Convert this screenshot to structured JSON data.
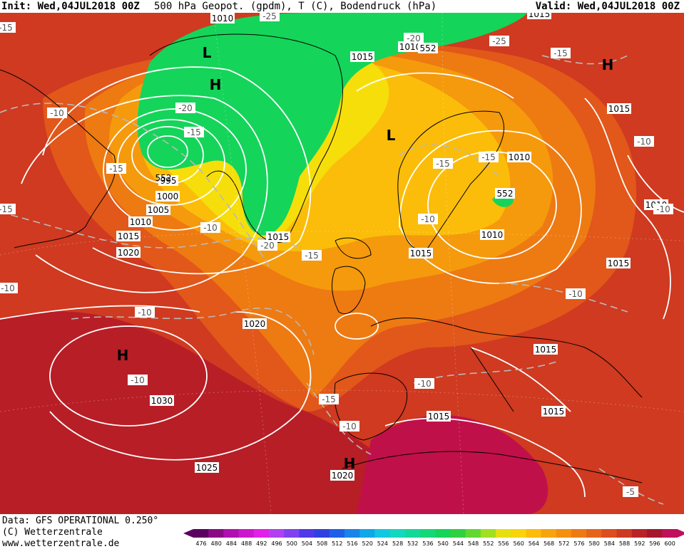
{
  "header": {
    "init": "Init: Wed,04JUL2018 00Z",
    "title": "500 hPa Geopot. (gpdm), T (C), Bodendruck (hPa)",
    "valid": "Valid: Wed,04JUL2018 00Z"
  },
  "footer": {
    "data_source": "Data: GFS OPERATIONAL 0.250°",
    "copyright": "(C) Wetterzentrale",
    "url": "www.wetterzentrale.de"
  },
  "colors": {
    "deep_red": "#b81e26",
    "red": "#cf3a20",
    "orange_red": "#e2571a",
    "orange": "#ee7a12",
    "orange_light": "#f59a0c",
    "yellow_orange": "#fbbd0a",
    "yellow": "#f6de0b",
    "green": "#15d45a",
    "green_light": "#55e14a",
    "magenta_red": "#c0104a",
    "isobar": "#ffffff",
    "isotherm": "#b9b9b9",
    "coast": "#000000"
  },
  "scale": {
    "values": [
      "476",
      "480",
      "484",
      "488",
      "492",
      "496",
      "500",
      "504",
      "508",
      "512",
      "516",
      "520",
      "524",
      "528",
      "532",
      "536",
      "540",
      "544",
      "548",
      "552",
      "556",
      "560",
      "564",
      "568",
      "572",
      "576",
      "580",
      "584",
      "588",
      "592",
      "596",
      "600"
    ],
    "colors": [
      "#5c0060",
      "#8a0a86",
      "#b010b0",
      "#cc18cc",
      "#e020e8",
      "#b040f0",
      "#8040f0",
      "#5038e8",
      "#3040e0",
      "#2060e8",
      "#1a84e8",
      "#10a8e8",
      "#12c8e0",
      "#12d8c0",
      "#12d89a",
      "#14d878",
      "#14d45a",
      "#30d040",
      "#60d830",
      "#a0e020",
      "#e6e010",
      "#f8d40a",
      "#fcbc0a",
      "#f8a40c",
      "#f4900e",
      "#ee7a12",
      "#e6641a",
      "#dc4e1e",
      "#cc3a22",
      "#b82426",
      "#a6162e",
      "#c0105a"
    ]
  },
  "map_labels": {
    "pressure": [
      {
        "text": "1010"
      },
      {
        "text": "1015"
      },
      {
        "text": "1010"
      },
      {
        "text": "1015"
      },
      {
        "text": "1005"
      },
      {
        "text": "1000"
      },
      {
        "text": "995"
      },
      {
        "text": "1010"
      },
      {
        "text": "1015"
      },
      {
        "text": "1020"
      },
      {
        "text": "1015"
      },
      {
        "text": "1020"
      },
      {
        "text": "1030"
      },
      {
        "text": "1025"
      },
      {
        "text": "1020"
      },
      {
        "text": "1015"
      },
      {
        "text": "1010"
      },
      {
        "text": "1010"
      },
      {
        "text": "1015"
      },
      {
        "text": "1015"
      },
      {
        "text": "1010"
      },
      {
        "text": "1015"
      },
      {
        "text": "1015"
      },
      {
        "text": "1015"
      }
    ],
    "temperature": [
      {
        "text": "-25"
      },
      {
        "text": "-20"
      },
      {
        "text": "-20"
      },
      {
        "text": "-15"
      },
      {
        "text": "-15"
      },
      {
        "text": "-10"
      },
      {
        "text": "-15"
      },
      {
        "text": "-10"
      },
      {
        "text": "-20"
      },
      {
        "text": "-15"
      },
      {
        "text": "-10"
      },
      {
        "text": "-10"
      },
      {
        "text": "-10"
      },
      {
        "text": "-15"
      },
      {
        "text": "-10"
      },
      {
        "text": "-15"
      },
      {
        "text": "-15"
      },
      {
        "text": "-10"
      },
      {
        "text": "-10"
      },
      {
        "text": "-10"
      },
      {
        "text": "-15"
      },
      {
        "text": "-5"
      },
      {
        "text": "-10"
      },
      {
        "text": "-10"
      },
      {
        "text": "-25"
      },
      {
        "text": "-15"
      }
    ],
    "geopot": [
      {
        "text": "552"
      },
      {
        "text": "552"
      },
      {
        "text": "552"
      }
    ],
    "centers": [
      {
        "text": "H"
      },
      {
        "text": "H"
      },
      {
        "text": "L"
      },
      {
        "text": "L"
      },
      {
        "text": "H"
      },
      {
        "text": "H"
      }
    ]
  }
}
